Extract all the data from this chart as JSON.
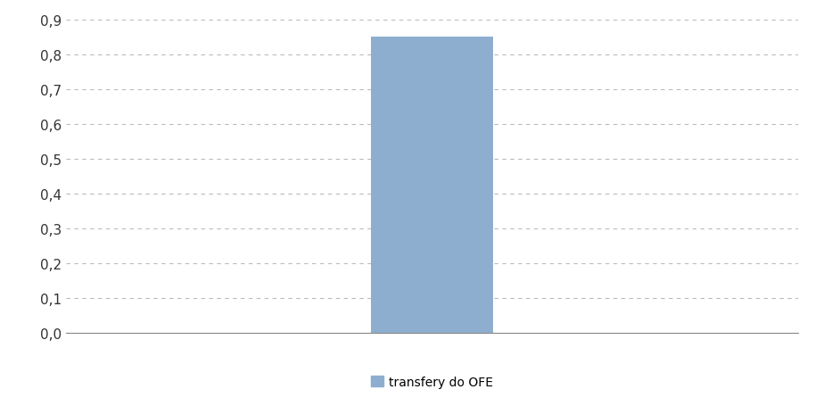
{
  "categories": [
    ""
  ],
  "values": [
    0.85
  ],
  "bar_color": "#8EAECF",
  "ylim": [
    0,
    0.9
  ],
  "yticks": [
    0.0,
    0.1,
    0.2,
    0.3,
    0.4,
    0.5,
    0.6,
    0.7,
    0.8,
    0.9
  ],
  "ytick_labels": [
    "0,0",
    "0,1",
    "0,2",
    "0,3",
    "0,4",
    "0,5",
    "0,6",
    "0,7",
    "0,8",
    "0,9"
  ],
  "legend_label": "transfery do OFE",
  "legend_color": "#8EAECF",
  "background_color": "#FFFFFF",
  "grid_color": "#BBBBBB",
  "bar_width": 0.25,
  "xlim": [
    -0.75,
    0.75
  ],
  "tick_fontsize": 11,
  "legend_fontsize": 10
}
